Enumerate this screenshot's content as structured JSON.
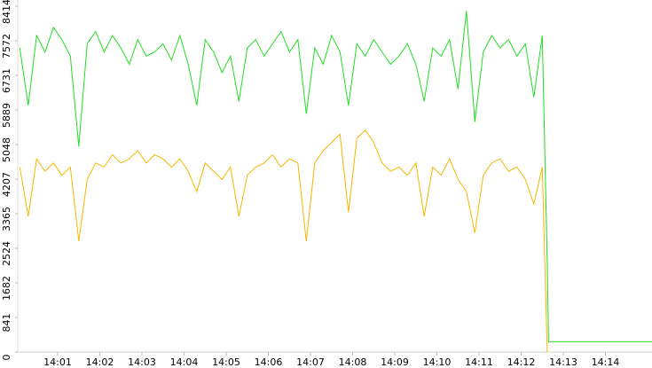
{
  "chart_data": {
    "type": "line",
    "xlim": [
      0,
      15.3
    ],
    "xticks": [
      {
        "value": 1,
        "label": "14:01"
      },
      {
        "value": 2,
        "label": "14:02"
      },
      {
        "value": 3,
        "label": "14:03"
      },
      {
        "value": 4,
        "label": "14:04"
      },
      {
        "value": 5,
        "label": "14:05"
      },
      {
        "value": 6,
        "label": "14:06"
      },
      {
        "value": 7,
        "label": "14:07"
      },
      {
        "value": 8,
        "label": "14:08"
      },
      {
        "value": 9,
        "label": "14:09"
      },
      {
        "value": 10,
        "label": "14:10"
      },
      {
        "value": 11,
        "label": "14:11"
      },
      {
        "value": 12,
        "label": "14:12"
      },
      {
        "value": 13,
        "label": "14:13"
      },
      {
        "value": 14,
        "label": "14:14"
      }
    ],
    "ylim": [
      0,
      8414
    ],
    "yticks": [
      0,
      841,
      1682,
      2524,
      3365,
      4207,
      5048,
      5889,
      6731,
      7572,
      8414
    ],
    "series": [
      {
        "color": "#22dd22",
        "x": [
          0.1,
          0.3,
          0.5,
          0.7,
          0.9,
          1.1,
          1.3,
          1.5,
          1.7,
          1.9,
          2.1,
          2.3,
          2.5,
          2.7,
          2.9,
          3.1,
          3.3,
          3.5,
          3.7,
          3.9,
          4.1,
          4.3,
          4.5,
          4.7,
          4.9,
          5.1,
          5.3,
          5.5,
          5.7,
          5.9,
          6.1,
          6.3,
          6.5,
          6.7,
          6.9,
          7.1,
          7.3,
          7.5,
          7.7,
          7.9,
          8.1,
          8.3,
          8.5,
          8.7,
          8.9,
          9.1,
          9.3,
          9.5,
          9.7,
          9.9,
          10.1,
          10.3,
          10.5,
          10.7,
          10.9,
          11.1,
          11.3,
          11.5,
          11.7,
          11.9,
          12.1,
          12.3,
          12.5,
          12.62,
          12.65,
          15.3
        ],
        "values": [
          7400,
          6000,
          7700,
          7300,
          7900,
          7600,
          7200,
          5000,
          7500,
          7800,
          7300,
          7700,
          7400,
          7000,
          7600,
          7200,
          7300,
          7500,
          7100,
          7700,
          7000,
          6000,
          7600,
          7300,
          6800,
          7200,
          6100,
          7400,
          7600,
          7200,
          7500,
          7800,
          7300,
          7600,
          5800,
          7400,
          7000,
          7700,
          7300,
          6000,
          7500,
          7200,
          7600,
          7300,
          7000,
          7200,
          7500,
          7000,
          6100,
          7400,
          7200,
          7600,
          6400,
          8300,
          5600,
          7300,
          7700,
          7400,
          7600,
          7200,
          7500,
          6200,
          7700,
          2200,
          250,
          250
        ]
      },
      {
        "color": "#f5b800",
        "x": [
          0.1,
          0.3,
          0.5,
          0.7,
          0.9,
          1.1,
          1.3,
          1.5,
          1.7,
          1.9,
          2.1,
          2.3,
          2.5,
          2.7,
          2.9,
          3.1,
          3.3,
          3.5,
          3.7,
          3.9,
          4.1,
          4.3,
          4.5,
          4.7,
          4.9,
          5.1,
          5.3,
          5.5,
          5.7,
          5.9,
          6.1,
          6.3,
          6.5,
          6.7,
          6.9,
          7.1,
          7.3,
          7.5,
          7.7,
          7.9,
          8.1,
          8.3,
          8.5,
          8.7,
          8.9,
          9.1,
          9.3,
          9.5,
          9.7,
          9.9,
          10.1,
          10.3,
          10.5,
          10.7,
          10.9,
          11.1,
          11.3,
          11.5,
          11.7,
          11.9,
          12.1,
          12.3,
          12.5,
          12.62
        ],
        "values": [
          4500,
          3300,
          4700,
          4400,
          4600,
          4300,
          4500,
          2700,
          4200,
          4600,
          4500,
          4800,
          4600,
          4700,
          4900,
          4600,
          4800,
          4700,
          4500,
          4700,
          4400,
          3900,
          4600,
          4400,
          4200,
          4500,
          3300,
          4300,
          4500,
          4600,
          4800,
          4500,
          4700,
          4600,
          2700,
          4600,
          4900,
          5100,
          5300,
          3400,
          5200,
          5400,
          5100,
          4600,
          4400,
          4500,
          4300,
          4600,
          3300,
          4500,
          4300,
          4700,
          4200,
          3900,
          2900,
          4300,
          4600,
          4700,
          4400,
          4500,
          4200,
          3600,
          4500,
          0
        ]
      }
    ]
  }
}
